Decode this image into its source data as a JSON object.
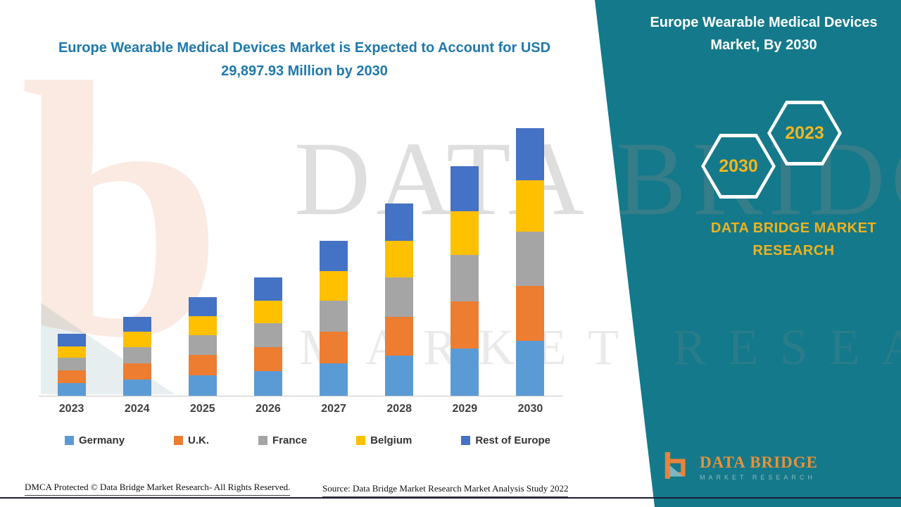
{
  "left_title": {
    "text": "Europe Wearable Medical Devices Market is Expected to Account for USD 29,897.93 Million by 2030",
    "color": "#1E79AD"
  },
  "panel": {
    "bg_color": "#14798A",
    "title": "Europe Wearable Medical Devices Market, By 2030",
    "hexagon_back_label": "2023",
    "hexagon_front_label": "2030",
    "hexagon_text_color": "#F2B61E",
    "brand_text": "DATA BRIDGE MARKET RESEARCH",
    "brand_text_color": "#EDB21F"
  },
  "logo": {
    "title": "DATA BRIDGE",
    "subtitle": "MARKET RESEARCH"
  },
  "watermark": {
    "glyph": "b",
    "line1": "DATA BRIDGE",
    "line2": "MARKET RESEARCH"
  },
  "footer": {
    "dmca": "DMCA Protected © Data Bridge Market Research- All Rights Reserved.",
    "source": "Source: Data Bridge Market Research Market Analysis Study 2022"
  },
  "chart_data": {
    "type": "bar",
    "stacked": true,
    "title": "Europe Wearable Medical Devices Market is Expected to Account for USD 29,897.93 Million by 2030",
    "unit": "USD Million",
    "categories": [
      "2023",
      "2024",
      "2025",
      "2026",
      "2027",
      "2028",
      "2029",
      "2030"
    ],
    "series": [
      {
        "name": "Germany",
        "color": "#5B9BD5",
        "values": [
          1450,
          1850,
          2300,
          2750,
          3600,
          4450,
          5300,
          6150
        ]
      },
      {
        "name": "U.K.",
        "color": "#ED7D31",
        "values": [
          1400,
          1800,
          2250,
          2700,
          3550,
          4400,
          5250,
          6100
        ]
      },
      {
        "name": "France",
        "color": "#A5A5A5",
        "values": [
          1400,
          1800,
          2250,
          2700,
          3500,
          4350,
          5200,
          6050
        ]
      },
      {
        "name": "Belgium",
        "color": "#FFC000",
        "values": [
          1300,
          1700,
          2100,
          2500,
          3300,
          4100,
          4900,
          5800
        ]
      },
      {
        "name": "Rest of Europe",
        "color": "#4472C4",
        "values": [
          1350,
          1700,
          2150,
          2550,
          3350,
          4150,
          5000,
          5797.93
        ]
      }
    ],
    "totals": [
      6900,
      8850,
      11050,
      13200,
      17300,
      21450,
      25650,
      29897.93
    ],
    "ylim": [
      0,
      29900
    ],
    "grid": false,
    "legend_position": "bottom"
  }
}
